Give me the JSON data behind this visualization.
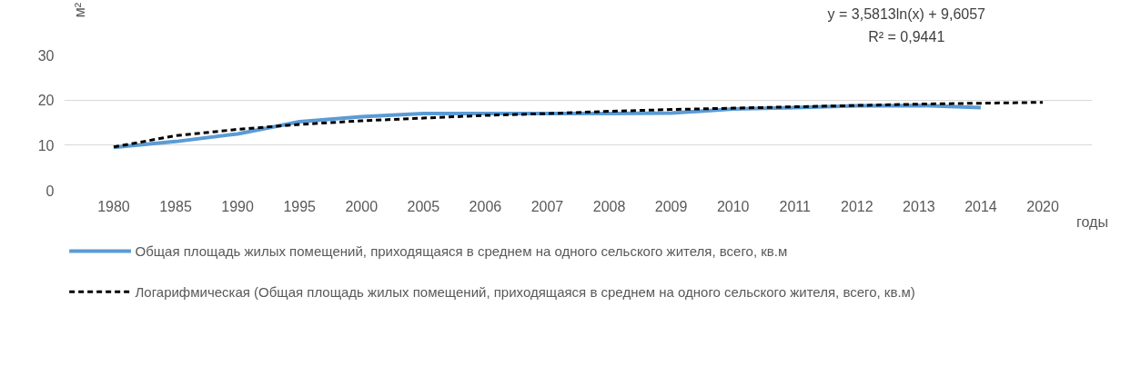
{
  "chart_data": {
    "type": "line",
    "categories": [
      "1980",
      "1985",
      "1990",
      "1995",
      "2000",
      "2005",
      "2006",
      "2007",
      "2008",
      "2009",
      "2010",
      "2011",
      "2012",
      "2013",
      "2014",
      "2020"
    ],
    "series": [
      {
        "name": "Общая площадь жилых помещений, приходящаяся в среднем на одного сельского жителя, всего, кв.м",
        "color": "#5b9bd5",
        "line_style": "solid",
        "values": [
          9.5,
          10.8,
          12.5,
          15.2,
          16.3,
          17.0,
          17.0,
          17.0,
          17.0,
          17.1,
          18.0,
          18.3,
          18.7,
          18.8,
          18.3,
          null
        ]
      },
      {
        "name": "Логарифмическая (Общая площадь жилых помещений, приходящаяся в среднем на одного сельского жителя, всего, кв.м)",
        "color": "#000000",
        "line_style": "dashed",
        "values": [
          9.6,
          12.1,
          13.5,
          14.6,
          15.4,
          16.0,
          16.6,
          17.0,
          17.5,
          17.9,
          18.2,
          18.5,
          18.8,
          19.1,
          19.3,
          19.5
        ]
      }
    ],
    "xlabel": "годы",
    "ylabel": "м²",
    "annotations": [
      "y = 3,5813ln(x) + 9,6057",
      "R² = 0,9441"
    ],
    "ylim": [
      0,
      30
    ],
    "yticks": [
      0,
      10,
      20,
      30
    ],
    "grid": "y",
    "legend": "bottom",
    "marker": "none"
  }
}
